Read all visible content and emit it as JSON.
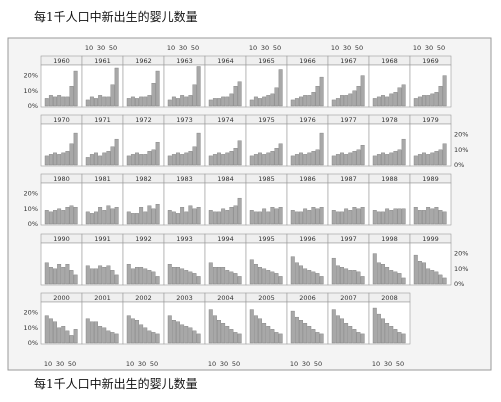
{
  "title_top": "每1千人口中新出生的婴儿数量",
  "title_bottom": "每1千人口中新出生的婴儿数量",
  "colors": {
    "bar": "#a8a8a8",
    "bar_stroke": "#7c7c7c",
    "panel_bg": "#ffffff",
    "strip_bg": "#efefef",
    "page_bg": "#f4f4f4",
    "border": "#9a9a9a"
  },
  "chart_data": {
    "type": "bar",
    "layout": "small multiples, 10 columns × 5 rows",
    "x_ticks": [
      "10",
      "30",
      "50"
    ],
    "y_ticks": [
      "0%",
      "10%",
      "20%"
    ],
    "ylim": [
      0,
      0.25
    ],
    "panels": [
      {
        "year": "1960",
        "values": [
          0.05,
          0.07,
          0.06,
          0.07,
          0.06,
          0.06,
          0.13,
          0.23
        ]
      },
      {
        "year": "1961",
        "values": [
          0.04,
          0.06,
          0.05,
          0.07,
          0.06,
          0.06,
          0.14,
          0.25
        ]
      },
      {
        "year": "1962",
        "values": [
          0.05,
          0.06,
          0.05,
          0.06,
          0.06,
          0.07,
          0.15,
          0.23
        ]
      },
      {
        "year": "1963",
        "values": [
          0.04,
          0.06,
          0.05,
          0.07,
          0.06,
          0.07,
          0.14,
          0.26
        ]
      },
      {
        "year": "1964",
        "values": [
          0.04,
          0.05,
          0.05,
          0.06,
          0.06,
          0.08,
          0.13,
          0.16
        ]
      },
      {
        "year": "1965",
        "values": [
          0.04,
          0.06,
          0.05,
          0.06,
          0.07,
          0.08,
          0.12,
          0.24
        ]
      },
      {
        "year": "1966",
        "values": [
          0.04,
          0.05,
          0.06,
          0.07,
          0.07,
          0.09,
          0.13,
          0.19
        ]
      },
      {
        "year": "1967",
        "values": [
          0.04,
          0.05,
          0.07,
          0.07,
          0.08,
          0.1,
          0.13,
          0.2
        ]
      },
      {
        "year": "1968",
        "values": [
          0.05,
          0.06,
          0.07,
          0.06,
          0.08,
          0.09,
          0.12,
          0.14
        ]
      },
      {
        "year": "1969",
        "values": [
          0.05,
          0.06,
          0.07,
          0.07,
          0.08,
          0.09,
          0.13,
          0.2
        ]
      },
      {
        "year": "1970",
        "values": [
          0.06,
          0.07,
          0.08,
          0.07,
          0.08,
          0.09,
          0.14,
          0.21
        ]
      },
      {
        "year": "1971",
        "values": [
          0.05,
          0.07,
          0.08,
          0.06,
          0.08,
          0.09,
          0.12,
          0.17
        ]
      },
      {
        "year": "1972",
        "values": [
          0.06,
          0.07,
          0.08,
          0.07,
          0.07,
          0.09,
          0.1,
          0.15
        ]
      },
      {
        "year": "1973",
        "values": [
          0.06,
          0.07,
          0.08,
          0.07,
          0.08,
          0.09,
          0.12,
          0.21
        ]
      },
      {
        "year": "1974",
        "values": [
          0.06,
          0.07,
          0.08,
          0.07,
          0.08,
          0.09,
          0.11,
          0.16
        ]
      },
      {
        "year": "1975",
        "values": [
          0.06,
          0.07,
          0.08,
          0.07,
          0.08,
          0.09,
          0.11,
          0.14
        ]
      },
      {
        "year": "1976",
        "values": [
          0.06,
          0.07,
          0.08,
          0.07,
          0.08,
          0.09,
          0.1,
          0.21
        ]
      },
      {
        "year": "1977",
        "values": [
          0.06,
          0.07,
          0.08,
          0.07,
          0.08,
          0.09,
          0.1,
          0.13
        ]
      },
      {
        "year": "1978",
        "values": [
          0.06,
          0.07,
          0.08,
          0.07,
          0.08,
          0.09,
          0.1,
          0.17
        ]
      },
      {
        "year": "1979",
        "values": [
          0.06,
          0.07,
          0.08,
          0.07,
          0.08,
          0.09,
          0.1,
          0.14
        ]
      },
      {
        "year": "1980",
        "values": [
          0.09,
          0.08,
          0.09,
          0.1,
          0.09,
          0.11,
          0.12,
          0.11
        ]
      },
      {
        "year": "1981",
        "values": [
          0.08,
          0.07,
          0.08,
          0.11,
          0.09,
          0.12,
          0.1,
          0.11
        ]
      },
      {
        "year": "1982",
        "values": [
          0.08,
          0.07,
          0.07,
          0.11,
          0.08,
          0.12,
          0.1,
          0.13
        ]
      },
      {
        "year": "1983",
        "values": [
          0.09,
          0.08,
          0.07,
          0.11,
          0.08,
          0.12,
          0.1,
          0.11
        ]
      },
      {
        "year": "1984",
        "values": [
          0.09,
          0.08,
          0.08,
          0.1,
          0.09,
          0.11,
          0.12,
          0.17
        ]
      },
      {
        "year": "1985",
        "values": [
          0.09,
          0.08,
          0.08,
          0.1,
          0.08,
          0.11,
          0.1,
          0.11
        ]
      },
      {
        "year": "1986",
        "values": [
          0.09,
          0.08,
          0.08,
          0.1,
          0.09,
          0.11,
          0.1,
          0.11
        ]
      },
      {
        "year": "1987",
        "values": [
          0.09,
          0.08,
          0.08,
          0.1,
          0.09,
          0.11,
          0.1,
          0.11
        ]
      },
      {
        "year": "1988",
        "values": [
          0.09,
          0.08,
          0.08,
          0.1,
          0.09,
          0.1,
          0.1,
          0.1
        ]
      },
      {
        "year": "1989",
        "values": [
          0.11,
          0.09,
          0.09,
          0.11,
          0.1,
          0.11,
          0.09,
          0.08
        ]
      },
      {
        "year": "1990",
        "values": [
          0.14,
          0.11,
          0.1,
          0.13,
          0.11,
          0.13,
          0.09,
          0.06
        ]
      },
      {
        "year": "1991",
        "values": [
          0.12,
          0.1,
          0.1,
          0.12,
          0.11,
          0.12,
          0.09,
          0.06
        ]
      },
      {
        "year": "1992",
        "values": [
          0.13,
          0.1,
          0.11,
          0.11,
          0.1,
          0.09,
          0.08,
          0.05
        ]
      },
      {
        "year": "1993",
        "values": [
          0.13,
          0.11,
          0.11,
          0.1,
          0.09,
          0.08,
          0.07,
          0.05
        ]
      },
      {
        "year": "1994",
        "values": [
          0.14,
          0.11,
          0.11,
          0.11,
          0.09,
          0.08,
          0.07,
          0.05
        ]
      },
      {
        "year": "1995",
        "values": [
          0.16,
          0.13,
          0.11,
          0.1,
          0.09,
          0.08,
          0.07,
          0.05
        ]
      },
      {
        "year": "1996",
        "values": [
          0.18,
          0.14,
          0.12,
          0.1,
          0.09,
          0.08,
          0.07,
          0.05
        ]
      },
      {
        "year": "1997",
        "values": [
          0.17,
          0.12,
          0.11,
          0.1,
          0.09,
          0.09,
          0.08,
          0.05
        ]
      },
      {
        "year": "1998",
        "values": [
          0.2,
          0.14,
          0.13,
          0.11,
          0.09,
          0.08,
          0.07,
          0.04
        ]
      },
      {
        "year": "1999",
        "values": [
          0.19,
          0.15,
          0.14,
          0.1,
          0.09,
          0.08,
          0.06,
          0.04
        ]
      },
      {
        "year": "2000",
        "values": [
          0.18,
          0.16,
          0.14,
          0.1,
          0.11,
          0.08,
          0.05,
          0.09
        ]
      },
      {
        "year": "2001",
        "values": [
          0.16,
          0.14,
          0.14,
          0.11,
          0.1,
          0.08,
          0.07,
          0.06
        ]
      },
      {
        "year": "2002",
        "values": [
          0.18,
          0.16,
          0.15,
          0.12,
          0.1,
          0.08,
          0.07,
          0.06
        ]
      },
      {
        "year": "2003",
        "values": [
          0.18,
          0.15,
          0.14,
          0.12,
          0.11,
          0.1,
          0.08,
          0.06
        ]
      },
      {
        "year": "2004",
        "values": [
          0.22,
          0.18,
          0.15,
          0.13,
          0.11,
          0.09,
          0.07,
          0.06
        ]
      },
      {
        "year": "2005",
        "values": [
          0.22,
          0.18,
          0.16,
          0.13,
          0.11,
          0.09,
          0.07,
          0.06
        ]
      },
      {
        "year": "2006",
        "values": [
          0.21,
          0.17,
          0.15,
          0.13,
          0.11,
          0.09,
          0.07,
          0.06
        ]
      },
      {
        "year": "2007",
        "values": [
          0.22,
          0.18,
          0.16,
          0.13,
          0.11,
          0.09,
          0.07,
          0.06
        ]
      },
      {
        "year": "2008",
        "values": [
          0.23,
          0.19,
          0.16,
          0.13,
          0.11,
          0.09,
          0.07,
          0.06
        ]
      }
    ]
  }
}
